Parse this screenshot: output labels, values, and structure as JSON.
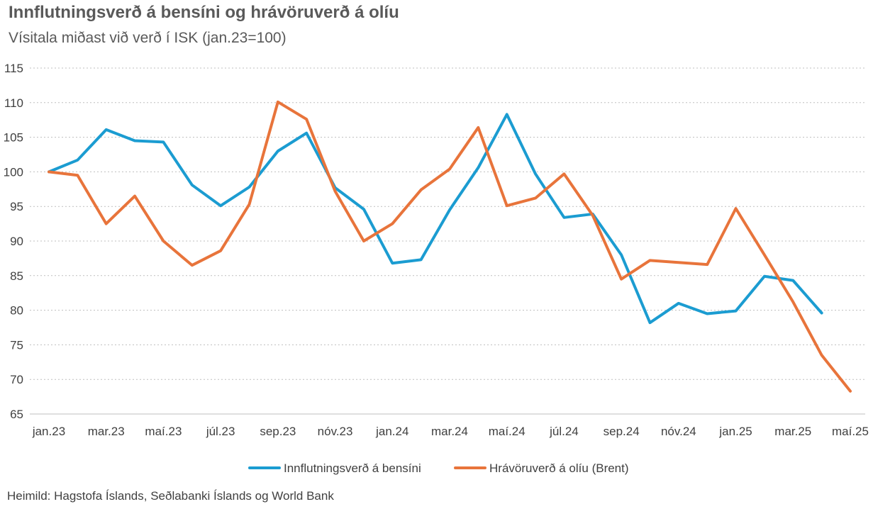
{
  "header": {
    "title": "Innflutningsverð á bensíni og hrávöruverð á olíu",
    "subtitle": "Vísitala miðast við verð í ISK (jan.23=100)"
  },
  "footer": {
    "source": "Heimild: Hagstofa Íslands, Seðlabanki Íslands og World Bank"
  },
  "chart_data": {
    "type": "line",
    "title": "Innflutningsverð á bensíni og hrávöruverð á olíu",
    "subtitle": "Vísitala miðast við verð í ISK (jan.23=100)",
    "xlabel": "",
    "ylabel": "",
    "ylim": [
      65,
      115
    ],
    "yticks": [
      65,
      70,
      75,
      80,
      85,
      90,
      95,
      100,
      105,
      110,
      115
    ],
    "grid": "horizontal dotted",
    "legend_position": "bottom",
    "x": [
      "jan.23",
      "feb.23",
      "mar.23",
      "apr.23",
      "maí.23",
      "jún.23",
      "júl.23",
      "ágú.23",
      "sep.23",
      "okt.23",
      "nóv.23",
      "des.23",
      "jan.24",
      "feb.24",
      "mar.24",
      "apr.24",
      "maí.24",
      "jún.24",
      "júl.24",
      "ágú.24",
      "sep.24",
      "okt.24",
      "nóv.24",
      "des.24",
      "jan.25",
      "feb.25",
      "mar.25",
      "apr.25",
      "maí.25"
    ],
    "xtick_labels": [
      "jan.23",
      "mar.23",
      "maí.23",
      "júl.23",
      "sep.23",
      "nóv.23",
      "jan.24",
      "mar.24",
      "maí.24",
      "júl.24",
      "sep.24",
      "nóv.24",
      "jan.25",
      "mar.25",
      "maí.25"
    ],
    "series": [
      {
        "name": "Innflutningsverð á bensíni",
        "color": "#1B9CD1",
        "values": [
          100,
          101.7,
          106.1,
          104.5,
          104.3,
          98.1,
          95.1,
          97.8,
          103.0,
          105.6,
          97.7,
          94.6,
          86.8,
          87.3,
          94.5,
          100.6,
          108.3,
          99.7,
          93.4,
          93.9,
          88.0,
          78.2,
          81.0,
          79.5,
          79.9,
          84.9,
          84.3,
          79.6,
          null
        ]
      },
      {
        "name": "Hrávöruverð á olíu (Brent)",
        "color": "#E8743B",
        "values": [
          100,
          99.5,
          92.5,
          96.5,
          90.0,
          86.5,
          88.6,
          95.3,
          110.1,
          107.6,
          97.2,
          90.0,
          92.5,
          97.4,
          100.4,
          106.4,
          95.1,
          96.2,
          99.7,
          93.7,
          84.5,
          87.2,
          86.9,
          86.6,
          94.7,
          88.0,
          81.2,
          73.5,
          68.3
        ]
      }
    ]
  }
}
